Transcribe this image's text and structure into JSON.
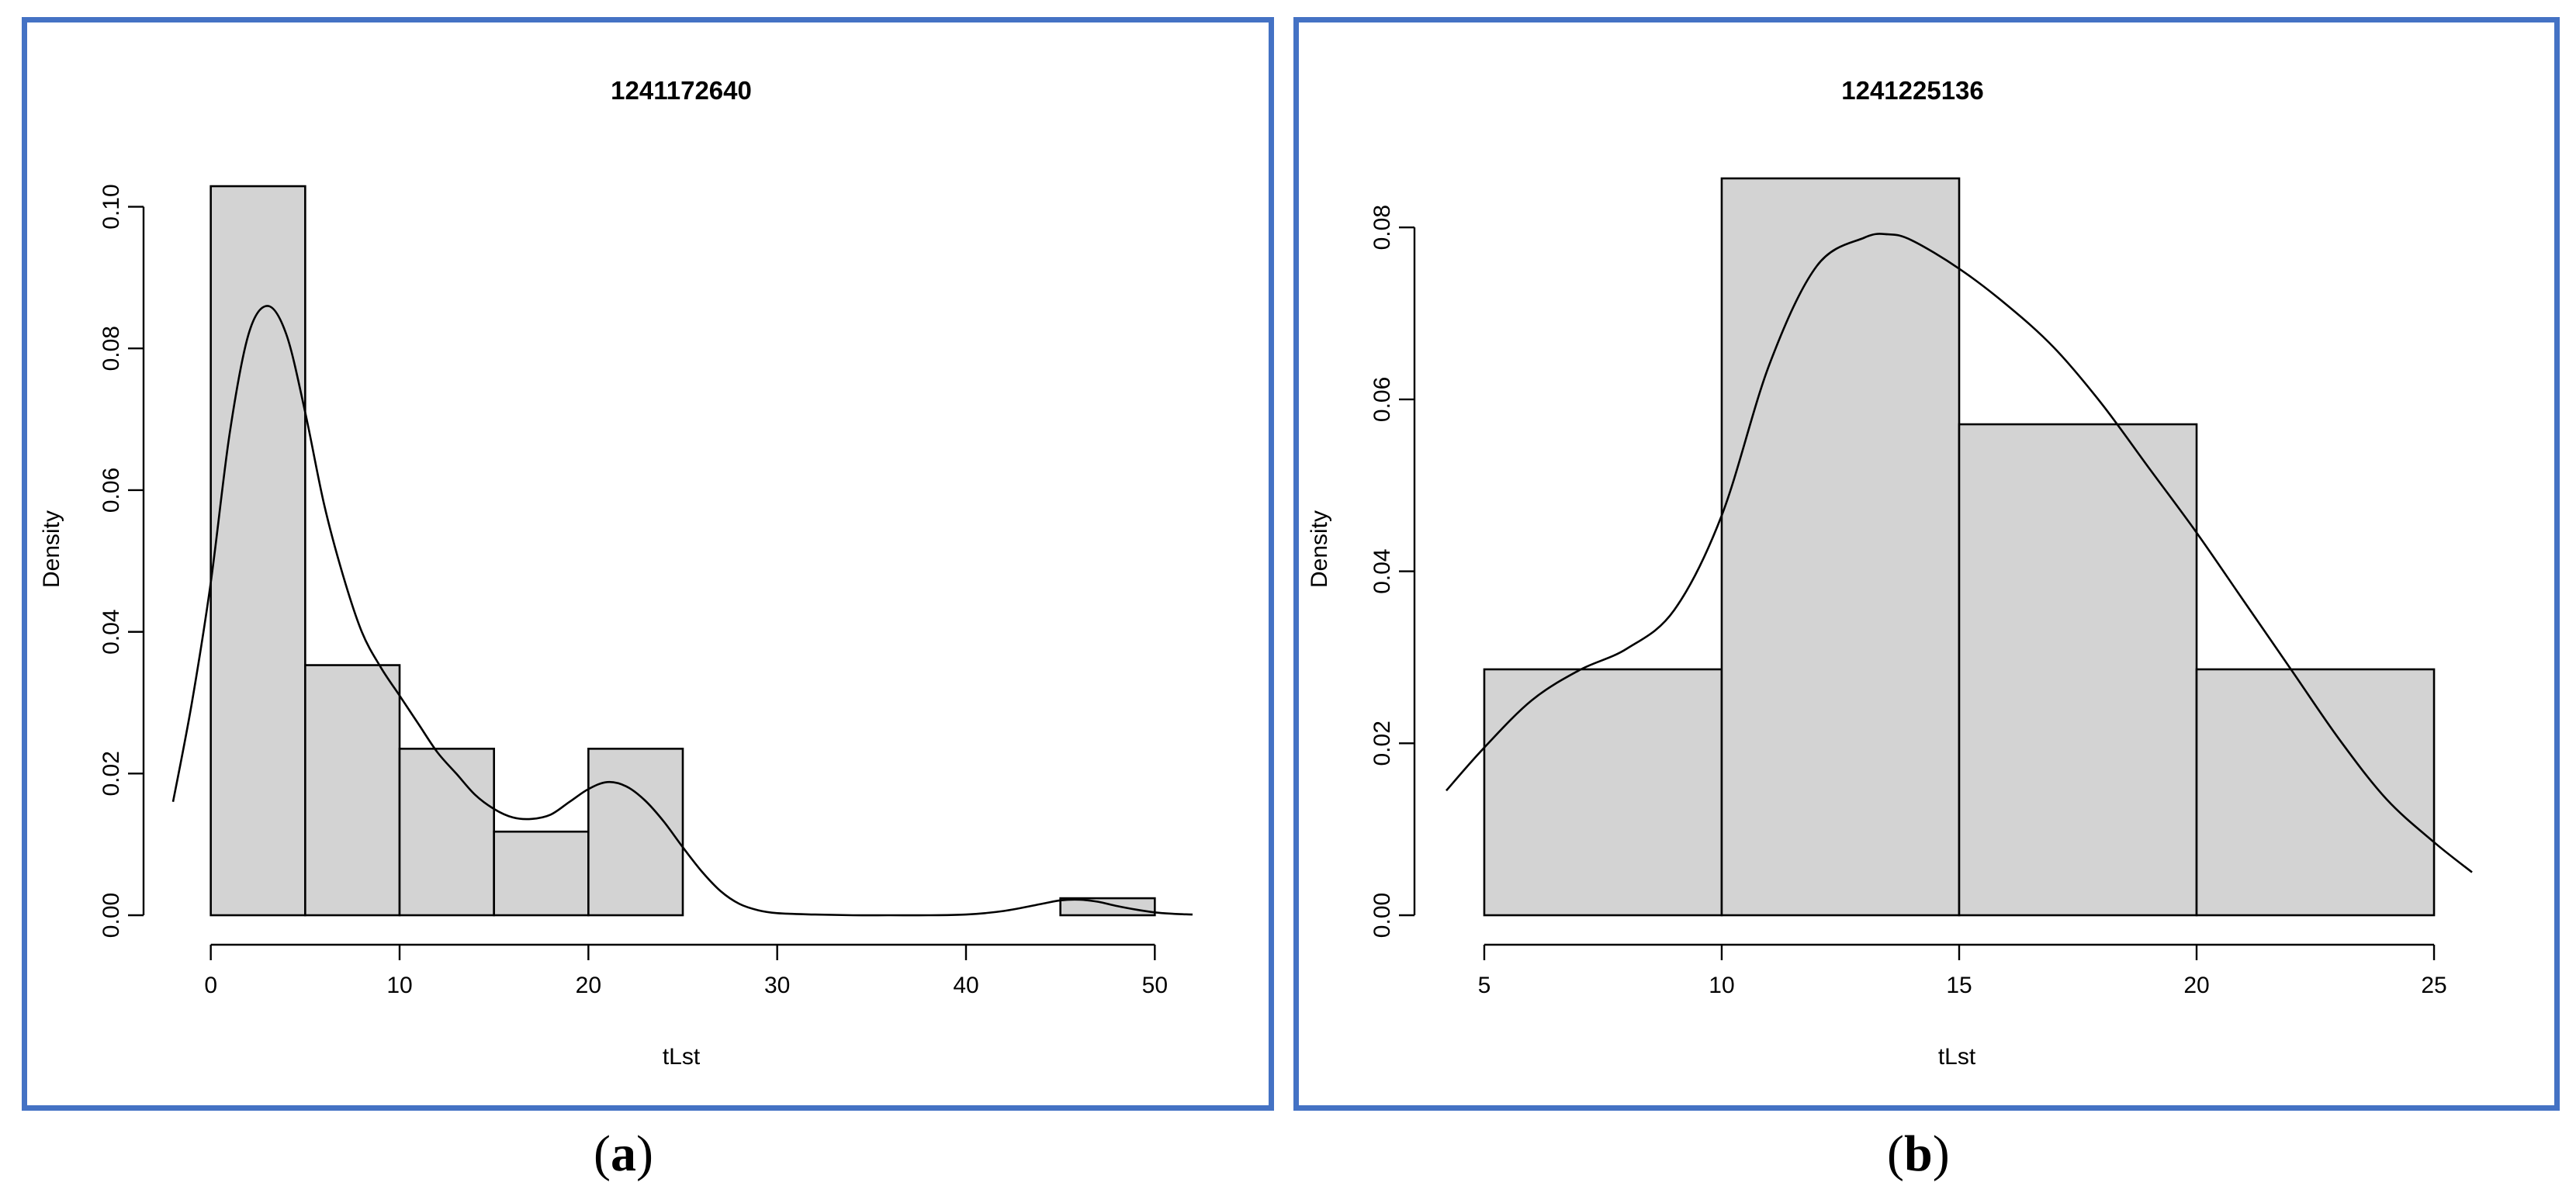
{
  "captions": {
    "a_letter": "a",
    "b_letter": "b"
  },
  "colors": {
    "frame": "#4472c4",
    "bar_fill": "#d3d3d3",
    "stroke": "#000000"
  },
  "chart_data": [
    {
      "type": "bar",
      "subtype": "histogram-with-density",
      "panel": "a",
      "title": "1241172640",
      "xlabel": "tLst",
      "ylabel": "Density",
      "bins": [
        [
          0,
          5
        ],
        [
          5,
          10
        ],
        [
          10,
          15
        ],
        [
          15,
          20
        ],
        [
          20,
          25
        ],
        [
          45,
          50
        ]
      ],
      "values": [
        0.1029,
        0.0353,
        0.0235,
        0.0118,
        0.0235,
        0.0024
      ],
      "xticks": [
        0,
        10,
        20,
        30,
        40,
        50
      ],
      "yticks": [
        "0.00",
        "0.02",
        "0.04",
        "0.06",
        "0.08",
        "0.10"
      ],
      "xlim": [
        -2,
        52
      ],
      "ylim": [
        0,
        0.104
      ],
      "grid": false,
      "density_curve": {
        "x": [
          -2,
          -1,
          0,
          1,
          2,
          3,
          4,
          5,
          6,
          7,
          8,
          9,
          10,
          11,
          12,
          13,
          14,
          15,
          16,
          17,
          18,
          19,
          20,
          21,
          22,
          23,
          24,
          25,
          26,
          27,
          28,
          29,
          30,
          32,
          34,
          36,
          38,
          40,
          42,
          44,
          45,
          46,
          47,
          48,
          49,
          50,
          51,
          52
        ],
        "y": [
          0.016,
          0.03,
          0.047,
          0.068,
          0.082,
          0.086,
          0.082,
          0.071,
          0.058,
          0.048,
          0.04,
          0.035,
          0.031,
          0.027,
          0.023,
          0.02,
          0.017,
          0.015,
          0.0138,
          0.0136,
          0.0142,
          0.016,
          0.0178,
          0.0188,
          0.0182,
          0.0162,
          0.0132,
          0.0096,
          0.0062,
          0.0034,
          0.0016,
          0.0007,
          0.0003,
          0.0001,
          0.0,
          0.0,
          0.0,
          0.0001,
          0.0006,
          0.0016,
          0.0021,
          0.0022,
          0.0019,
          0.0013,
          0.0008,
          0.0004,
          0.0002,
          0.0001
        ]
      }
    },
    {
      "type": "bar",
      "subtype": "histogram-with-density",
      "panel": "b",
      "title": "1241225136",
      "xlabel": "tLst",
      "ylabel": "Density",
      "bins": [
        [
          5,
          10
        ],
        [
          10,
          15
        ],
        [
          15,
          20
        ],
        [
          20,
          25
        ]
      ],
      "values": [
        0.0286,
        0.0857,
        0.0571,
        0.0286
      ],
      "xticks": [
        5,
        10,
        15,
        20,
        25
      ],
      "yticks": [
        "0.00",
        "0.02",
        "0.04",
        "0.06",
        "0.08"
      ],
      "xlim": [
        4.2,
        25.8
      ],
      "ylim": [
        0,
        0.0857
      ],
      "grid": false,
      "density_curve": {
        "x": [
          4.2,
          5,
          6,
          7,
          8,
          9,
          10,
          11,
          12,
          13,
          13.5,
          14,
          15,
          16,
          17,
          18,
          19,
          20,
          21,
          22,
          23,
          24,
          25,
          25.8
        ],
        "y": [
          0.0145,
          0.0195,
          0.025,
          0.0285,
          0.031,
          0.0355,
          0.0465,
          0.064,
          0.0755,
          0.0788,
          0.0792,
          0.0785,
          0.0752,
          0.071,
          0.066,
          0.0595,
          0.052,
          0.0445,
          0.0365,
          0.0285,
          0.0205,
          0.0135,
          0.0085,
          0.005
        ]
      }
    }
  ]
}
